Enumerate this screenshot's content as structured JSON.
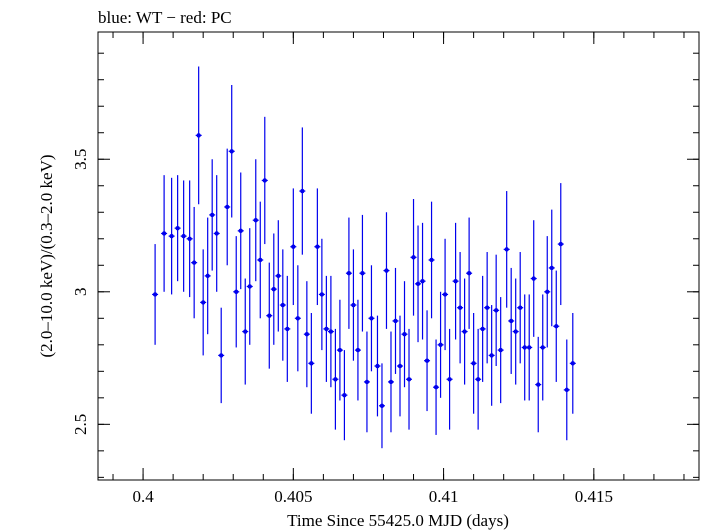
{
  "chart_data": {
    "type": "scatter",
    "title": "blue: WT − red: PC",
    "xlabel": "Time Since 55425.0 MJD (days)",
    "ylabel": "(2.0–10.0 keV)/(0.3–2.0 keV)",
    "xlim": [
      0.3985,
      0.4185
    ],
    "ylim": [
      2.29,
      3.98
    ],
    "xticks": [
      {
        "value": 0.4,
        "label": "0.4"
      },
      {
        "value": 0.405,
        "label": "0.405"
      },
      {
        "value": 0.41,
        "label": "0.41"
      },
      {
        "value": 0.415,
        "label": "0.415"
      }
    ],
    "yticks": [
      {
        "value": 2.5,
        "label": "2.5"
      },
      {
        "value": 3.0,
        "label": "3"
      },
      {
        "value": 3.5,
        "label": "3.5"
      }
    ],
    "x_minor_step": 0.001,
    "y_minor_step": 0.1,
    "grid": false,
    "legend": "none",
    "colors": {
      "WT": "#0000ee",
      "PC": "#ee0000"
    },
    "series": [
      {
        "name": "WT",
        "color": "#0000ee",
        "xerr": 0.0001,
        "points": [
          [
            0.4004,
            2.99,
            0.19
          ],
          [
            0.4007,
            3.22,
            0.22
          ],
          [
            0.40095,
            3.21,
            0.22
          ],
          [
            0.40115,
            3.24,
            0.2
          ],
          [
            0.40135,
            3.21,
            0.21
          ],
          [
            0.40155,
            3.2,
            0.22
          ],
          [
            0.4017,
            3.11,
            0.21
          ],
          [
            0.40185,
            3.59,
            0.26
          ],
          [
            0.402,
            2.96,
            0.2
          ],
          [
            0.40215,
            3.06,
            0.22
          ],
          [
            0.4023,
            3.29,
            0.21
          ],
          [
            0.40245,
            3.22,
            0.22
          ],
          [
            0.4026,
            2.76,
            0.18
          ],
          [
            0.4028,
            3.32,
            0.22
          ],
          [
            0.40295,
            3.53,
            0.25
          ],
          [
            0.4031,
            3.0,
            0.21
          ],
          [
            0.40325,
            3.23,
            0.22
          ],
          [
            0.4034,
            2.85,
            0.2
          ],
          [
            0.40355,
            3.02,
            0.22
          ],
          [
            0.40375,
            3.27,
            0.23
          ],
          [
            0.4039,
            3.12,
            0.22
          ],
          [
            0.40405,
            3.42,
            0.24
          ],
          [
            0.4042,
            2.91,
            0.2
          ],
          [
            0.40435,
            3.01,
            0.21
          ],
          [
            0.4045,
            3.06,
            0.21
          ],
          [
            0.40465,
            2.95,
            0.21
          ],
          [
            0.4048,
            2.86,
            0.2
          ],
          [
            0.405,
            3.17,
            0.22
          ],
          [
            0.40515,
            2.9,
            0.2
          ],
          [
            0.4053,
            3.38,
            0.24
          ],
          [
            0.40545,
            2.84,
            0.2
          ],
          [
            0.4056,
            2.73,
            0.19
          ],
          [
            0.4058,
            3.17,
            0.22
          ],
          [
            0.40595,
            2.99,
            0.21
          ],
          [
            0.4061,
            2.86,
            0.2
          ],
          [
            0.40625,
            2.85,
            0.21
          ],
          [
            0.4064,
            2.67,
            0.19
          ],
          [
            0.40655,
            2.78,
            0.19
          ],
          [
            0.4067,
            2.61,
            0.17
          ],
          [
            0.40685,
            3.07,
            0.21
          ],
          [
            0.407,
            2.95,
            0.21
          ],
          [
            0.40715,
            2.78,
            0.19
          ],
          [
            0.4073,
            3.07,
            0.22
          ],
          [
            0.40745,
            2.66,
            0.19
          ],
          [
            0.4076,
            2.9,
            0.2
          ],
          [
            0.4078,
            2.72,
            0.19
          ],
          [
            0.40795,
            2.57,
            0.16
          ],
          [
            0.4081,
            3.08,
            0.22
          ],
          [
            0.40825,
            2.66,
            0.19
          ],
          [
            0.4084,
            2.89,
            0.2
          ],
          [
            0.40855,
            2.72,
            0.19
          ],
          [
            0.4087,
            2.84,
            0.2
          ],
          [
            0.40885,
            2.67,
            0.19
          ],
          [
            0.409,
            3.13,
            0.22
          ],
          [
            0.40915,
            3.03,
            0.22
          ],
          [
            0.4093,
            3.04,
            0.22
          ],
          [
            0.40945,
            2.74,
            0.19
          ],
          [
            0.4096,
            3.12,
            0.22
          ],
          [
            0.40975,
            2.64,
            0.18
          ],
          [
            0.4099,
            2.8,
            0.2
          ],
          [
            0.41005,
            2.99,
            0.21
          ],
          [
            0.4102,
            2.67,
            0.19
          ],
          [
            0.4104,
            3.04,
            0.22
          ],
          [
            0.41055,
            2.94,
            0.21
          ],
          [
            0.4107,
            2.85,
            0.2
          ],
          [
            0.41085,
            3.07,
            0.21
          ],
          [
            0.411,
            2.73,
            0.19
          ],
          [
            0.41115,
            2.67,
            0.19
          ],
          [
            0.4113,
            2.86,
            0.2
          ],
          [
            0.41145,
            2.94,
            0.21
          ],
          [
            0.4116,
            2.76,
            0.19
          ],
          [
            0.41175,
            2.93,
            0.21
          ],
          [
            0.4119,
            2.78,
            0.2
          ],
          [
            0.4121,
            3.16,
            0.22
          ],
          [
            0.41225,
            2.89,
            0.2
          ],
          [
            0.4124,
            2.85,
            0.2
          ],
          [
            0.41255,
            2.94,
            0.21
          ],
          [
            0.4127,
            2.79,
            0.2
          ],
          [
            0.41285,
            2.79,
            0.2
          ],
          [
            0.413,
            3.05,
            0.22
          ],
          [
            0.41315,
            2.65,
            0.18
          ],
          [
            0.4133,
            2.79,
            0.2
          ],
          [
            0.41345,
            3.0,
            0.21
          ],
          [
            0.4136,
            3.09,
            0.22
          ],
          [
            0.41375,
            2.87,
            0.21
          ],
          [
            0.4139,
            3.18,
            0.23
          ],
          [
            0.4141,
            2.63,
            0.19
          ],
          [
            0.4143,
            2.73,
            0.19
          ]
        ]
      }
    ]
  }
}
